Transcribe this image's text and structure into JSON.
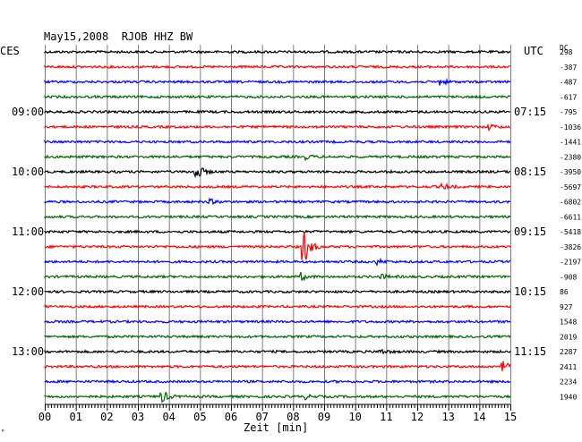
{
  "chart_data": {
    "type": "line",
    "title": "May15,2008  RJOB HHZ BW",
    "left_zone": "CES",
    "right_zone": "UTC",
    "dc_label": "DC",
    "xlabel": "Zeit [min]",
    "x_ticks": [
      "00",
      "01",
      "02",
      "03",
      "04",
      "05",
      "06",
      "07",
      "08",
      "09",
      "10",
      "11",
      "12",
      "13",
      "14",
      "15"
    ],
    "xlim": [
      0,
      15
    ],
    "grid": true,
    "trace_colors": [
      "#000000",
      "#ff0000",
      "#0000ff",
      "#006400"
    ],
    "traces": [
      {
        "dc": "298",
        "events": []
      },
      {
        "dc": "-387",
        "events": []
      },
      {
        "dc": "-487",
        "events": [
          {
            "t": 12.7,
            "amp": 4
          }
        ]
      },
      {
        "dc": "-617",
        "events": []
      },
      {
        "dc": "-795",
        "events": []
      },
      {
        "dc": "-1036",
        "events": [
          {
            "t": 14.3,
            "amp": 3
          }
        ]
      },
      {
        "dc": "-1441",
        "events": []
      },
      {
        "dc": "-2380",
        "events": [
          {
            "t": 8.4,
            "amp": 2.5
          }
        ]
      },
      {
        "dc": "-3950",
        "events": [
          {
            "t": 4.85,
            "amp": 12
          }
        ]
      },
      {
        "dc": "-5697",
        "events": [
          {
            "t": 12.8,
            "amp": 4
          }
        ]
      },
      {
        "dc": "-6802",
        "events": [
          {
            "t": 5.3,
            "amp": 3
          }
        ]
      },
      {
        "dc": "-6611",
        "events": []
      },
      {
        "dc": "-5418",
        "events": []
      },
      {
        "dc": "-3826",
        "events": [
          {
            "t": 8.3,
            "amp": 28
          }
        ]
      },
      {
        "dc": "-2197",
        "events": [
          {
            "t": 10.7,
            "amp": 3
          }
        ]
      },
      {
        "dc": "-908",
        "events": [
          {
            "t": 8.25,
            "amp": 4
          },
          {
            "t": 10.8,
            "amp": 3
          }
        ]
      },
      {
        "dc": "86",
        "events": []
      },
      {
        "dc": "927",
        "events": []
      },
      {
        "dc": "1548",
        "events": []
      },
      {
        "dc": "2019",
        "events": []
      },
      {
        "dc": "2287",
        "events": [
          {
            "t": 10.8,
            "amp": 3
          }
        ]
      },
      {
        "dc": "2411",
        "events": [
          {
            "t": 14.7,
            "amp": 8
          }
        ]
      },
      {
        "dc": "2234",
        "events": []
      },
      {
        "dc": "1940",
        "events": [
          {
            "t": 3.75,
            "amp": 8
          },
          {
            "t": 8.35,
            "amp": 3
          }
        ]
      }
    ],
    "left_hour_labels": [
      {
        "row": 4,
        "text": "09:00"
      },
      {
        "row": 8,
        "text": "10:00"
      },
      {
        "row": 12,
        "text": "11:00"
      },
      {
        "row": 16,
        "text": "12:00"
      },
      {
        "row": 20,
        "text": "13:00"
      }
    ],
    "right_hour_labels": [
      {
        "row": 4,
        "text": "07:15"
      },
      {
        "row": 8,
        "text": "08:15"
      },
      {
        "row": 12,
        "text": "09:15"
      },
      {
        "row": 16,
        "text": "10:15"
      },
      {
        "row": 20,
        "text": "11:15"
      }
    ]
  }
}
